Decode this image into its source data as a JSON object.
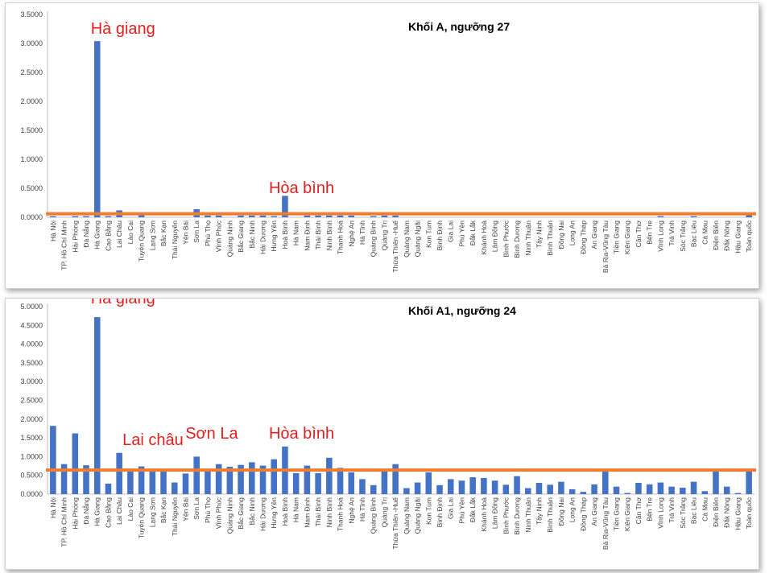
{
  "chart_data": [
    {
      "type": "bar",
      "title": "Khối A, ngưỡng 27",
      "ylim": [
        0,
        3.5
      ],
      "yticks": [
        "0.0000",
        "0.5000",
        "1.0000",
        "1.5000",
        "2.0000",
        "2.5000",
        "3.0000",
        "3.5000"
      ],
      "categories": [
        "Hà Nội",
        "TP. Hồ Chí Minh",
        "Hải Phòng",
        "Đà Nẵng",
        "Hà Giang",
        "Cao Bằng",
        "Lai Châu",
        "Lào Cai",
        "Tuyên Quang",
        "Lạng Sơn",
        "Bắc Kạn",
        "Thái Nguyên",
        "Yên Bái",
        "Sơn La",
        "Phú Thọ",
        "Vĩnh Phúc",
        "Quảng Ninh",
        "Bắc Giang",
        "Bắc Ninh",
        "Hải Dương",
        "Hưng Yên",
        "Hoà Bình",
        "Hà Nam",
        "Nam Định",
        "Thái Bình",
        "Ninh Bình",
        "Thanh Hoá",
        "Nghệ An",
        "Hà Tĩnh",
        "Quảng Bình",
        "Quảng Trị",
        "Thừa Thiên -Huế",
        "Quảng Nam",
        "Quảng Ngãi",
        "Kon Tum",
        "Bình Định",
        "Gia Lai",
        "Phú Yên",
        "Đắk Lắk",
        "Khánh Hoà",
        "Lâm Đồng",
        "Bình Phước",
        "Bình Dương",
        "Ninh Thuận",
        "Tây Ninh",
        "Bình Thuận",
        "Đồng Nai",
        "Long An",
        "Đồng Tháp",
        "An Giang",
        "Bà Rịa-Vũng Tàu",
        "Tiền Giang",
        "Kiên Giang",
        "Cần Thơ",
        "Bến Tre",
        "Vĩnh Long",
        "Trà Vinh",
        "Sóc Trăng",
        "Bạc Liêu",
        "Cà Mau",
        "Điện Biên",
        "Đắk Nông",
        "Hậu Giang",
        "Toàn quốc"
      ],
      "values": [
        0.02,
        0,
        0.02,
        0.02,
        3.04,
        0.02,
        0.12,
        0,
        0.04,
        0,
        0,
        0,
        0,
        0.14,
        0.03,
        0.03,
        0,
        0.03,
        0.03,
        0.03,
        0.02,
        0.37,
        0,
        0.03,
        0.03,
        0.03,
        0.03,
        0.03,
        0,
        0.02,
        0.03,
        0.03,
        0,
        0,
        0,
        0,
        0,
        0,
        0,
        0,
        0,
        0,
        0,
        0,
        0,
        0,
        0,
        0,
        0,
        0,
        0,
        0,
        0,
        0,
        0,
        0.02,
        0,
        0,
        0.02,
        0,
        0,
        0,
        0,
        0.04
      ],
      "threshold_line": 0.06,
      "bar_color": "#4472C4",
      "threshold_color": "#ED7D31",
      "annotations": [
        {
          "text": "Hà giang",
          "category": "Hà Giang",
          "color": "#E02020"
        },
        {
          "text": "Hòa bình",
          "category": "Hoà Bình",
          "color": "#E02020"
        }
      ]
    },
    {
      "type": "bar",
      "title": "Khối A1, ngưỡng 24",
      "ylim": [
        0,
        5
      ],
      "yticks": [
        "0.0000",
        "0.5000",
        "1.0000",
        "1.5000",
        "2.0000",
        "2.5000",
        "3.0000",
        "3.5000",
        "4.0000",
        "4.5000",
        "5.0000"
      ],
      "categories": [
        "Hà Nội",
        "TP. Hồ Chí Minh",
        "Hải Phòng",
        "Đà Nẵng",
        "Hà Giang",
        "Cao Bằng",
        "Lai Châu",
        "Lào Cai",
        "Tuyên Quang",
        "Lạng Sơn",
        "Bắc Kạn",
        "Thái Nguyên",
        "Yên Bái",
        "Sơn La",
        "Phú Thọ",
        "Vĩnh Phúc",
        "Quảng Ninh",
        "Bắc Giang",
        "Bắc Ninh",
        "Hải Dương",
        "Hưng Yên",
        "Hoà Bình",
        "Hà Nam",
        "Nam Định",
        "Thái Bình",
        "Ninh Bình",
        "Thanh Hoá",
        "Nghệ An",
        "Hà Tĩnh",
        "Quảng Bình",
        "Quảng Trị",
        "Thừa Thiên -Huế",
        "Quảng Nam",
        "Quảng Ngãi",
        "Kon Tum",
        "Bình Định",
        "Gia Lai",
        "Phú Yên",
        "Đắk Lắk",
        "Khánh Hoà",
        "Lâm Đồng",
        "Bình Phước",
        "Bình Dương",
        "Ninh Thuận",
        "Tây Ninh",
        "Bình Thuận",
        "Đồng Nai",
        "Long An",
        "Đồng Tháp",
        "An Giang",
        "Bà Rịa-Vũng Tàu",
        "Tiền Giang",
        "Kiên Giang",
        "Cần Thơ",
        "Bến Tre",
        "Vĩnh Long",
        "Trà Vinh",
        "Sóc Trăng",
        "Bạc Liêu",
        "Cà Mau",
        "Điện Biên",
        "Đắk Nông",
        "Hậu Giang",
        "Toàn quốc"
      ],
      "values": [
        1.82,
        0.8,
        1.62,
        0.77,
        4.72,
        0.28,
        1.1,
        0.62,
        0.74,
        0.6,
        0.6,
        0.31,
        0.55,
        1.0,
        0.62,
        0.8,
        0.73,
        0.78,
        0.85,
        0.76,
        0.93,
        1.27,
        0.56,
        0.76,
        0.56,
        0.97,
        0.7,
        0.58,
        0.4,
        0.24,
        0.62,
        0.8,
        0.16,
        0.31,
        0.58,
        0.24,
        0.4,
        0.36,
        0.45,
        0.43,
        0.36,
        0.25,
        0.48,
        0.16,
        0.3,
        0.25,
        0.33,
        0.13,
        0.06,
        0.26,
        0.6,
        0.2,
        0.03,
        0.3,
        0.26,
        0.31,
        0.2,
        0.17,
        0.33,
        0.08,
        0.6,
        0.2,
        0.03,
        0.62
      ],
      "threshold_line": 0.64,
      "bar_color": "#4472C4",
      "threshold_color": "#ED7D31",
      "annotations": [
        {
          "text": "Hà giang",
          "category": "Hà Giang",
          "color": "#E02020"
        },
        {
          "text": "Lai châu",
          "category": "Lai Châu",
          "color": "#E02020"
        },
        {
          "text": "Sơn La",
          "category": "Sơn La",
          "color": "#E02020"
        },
        {
          "text": "Hòa bình",
          "category": "Hoà Bình",
          "color": "#E02020"
        }
      ]
    }
  ]
}
